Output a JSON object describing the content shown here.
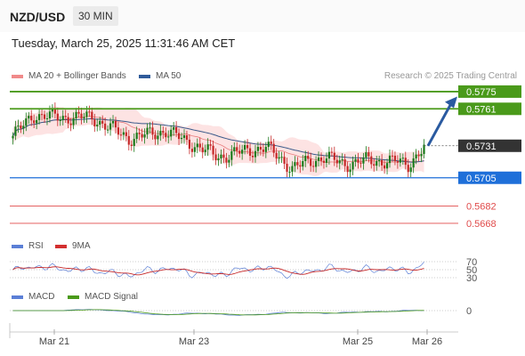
{
  "header": {
    "symbol": "NZD/USD",
    "timeframe": "30 MIN"
  },
  "timestamp": "Tuesday, March 25, 2025 11:31:46 AM CET",
  "credit": "Research © 2025 Trading Central",
  "legend": {
    "ma_bb": "MA 20 + Bollinger Bands",
    "ma50": "MA 50",
    "rsi": "RSI",
    "rsi_ma": "9MA",
    "macd": "MACD",
    "macd_signal": "MACD Signal"
  },
  "colors": {
    "bullish": "#1a7a1a",
    "bearish": "#c62828",
    "resistance": "#4a9a1a",
    "pivot": "#1e6fd9",
    "support": "#e04a4a",
    "ma50": "#3a5a8a",
    "ma20": "#e98080",
    "bands": "#fde3e3",
    "rsi": "#5b7fd6",
    "rsi_ma": "#c62828",
    "macd": "#5b7fd6",
    "macd_signal": "#4a9a1a",
    "price_tag": "#333333"
  },
  "chart_data": [
    {
      "type": "candlestick",
      "title": "NZD/USD 30 MIN",
      "x_tick_labels": [
        "Mar 21",
        "Mar 23",
        "Mar 25",
        "Mar 26"
      ],
      "y_range": [
        0.566,
        0.578
      ],
      "series": [
        {
          "name": "MA 20 + Bollinger Bands"
        },
        {
          "name": "MA 50"
        }
      ],
      "levels": {
        "resistances": [
          "0.5775",
          "0.5761"
        ],
        "last_price": "0.5731",
        "pivot": "0.5705",
        "supports": [
          "0.5682",
          "0.5668"
        ]
      },
      "target_arrow": {
        "from": 0.5731,
        "to": 0.5771
      }
    },
    {
      "type": "line",
      "name": "RSI",
      "levels": [
        "70",
        "50",
        "30"
      ],
      "series": [
        {
          "name": "RSI"
        },
        {
          "name": "9MA"
        }
      ]
    },
    {
      "type": "line",
      "name": "MACD",
      "levels": [
        "0"
      ],
      "series": [
        {
          "name": "MACD"
        },
        {
          "name": "MACD Signal"
        }
      ]
    }
  ]
}
